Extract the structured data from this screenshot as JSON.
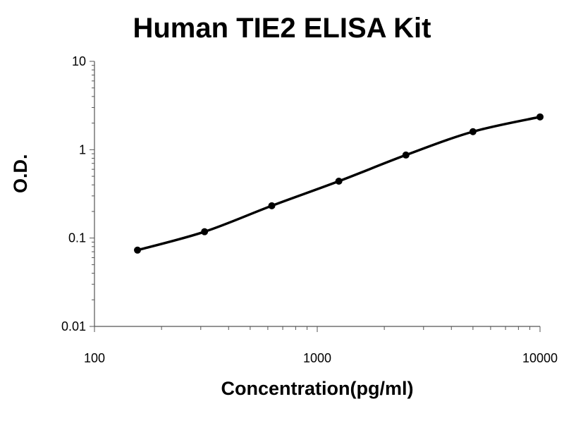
{
  "chart_data": {
    "type": "line",
    "title": "Human TIE2 ELISA Kit",
    "xlabel": "Concentration(pg/ml)",
    "ylabel": "O.D.",
    "x_scale": "log",
    "y_scale": "log",
    "xlim": [
      100,
      10000
    ],
    "ylim": [
      0.01,
      10
    ],
    "x_ticks": [
      {
        "value": 100,
        "label": "100"
      },
      {
        "value": 1000,
        "label": "1000"
      },
      {
        "value": 10000,
        "label": "10000"
      }
    ],
    "y_ticks": [
      {
        "value": 10,
        "label": "10"
      },
      {
        "value": 1,
        "label": "1"
      },
      {
        "value": 0.1,
        "label": "0.1"
      },
      {
        "value": 0.01,
        "label": "0.01"
      }
    ],
    "grid": false,
    "legend": "none",
    "series": [
      {
        "x": [
          156,
          312,
          625,
          1250,
          2500,
          5000,
          10000
        ],
        "y": [
          0.073,
          0.118,
          0.232,
          0.44,
          0.87,
          1.6,
          2.35
        ],
        "color": "#000000"
      }
    ]
  }
}
